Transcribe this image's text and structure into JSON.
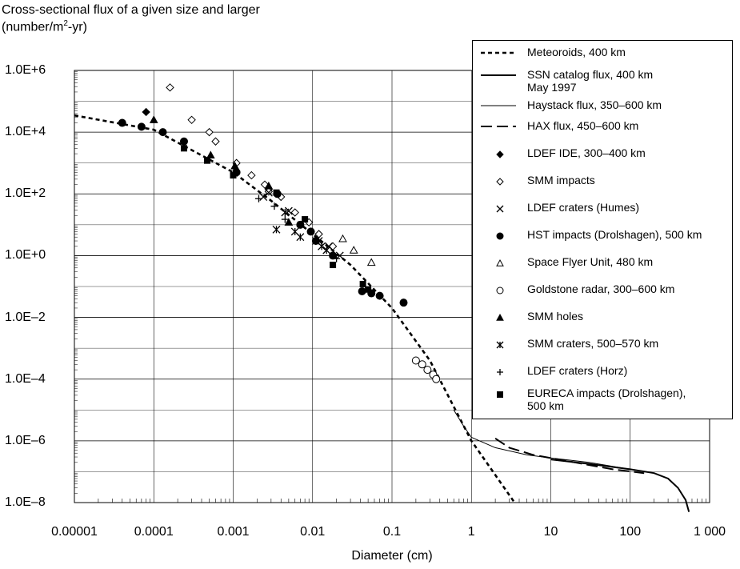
{
  "chart_data": {
    "type": "scatter",
    "ylabel_line1": "Cross-sectional flux of a given size and larger",
    "ylabel_line2_pre": "(number/m",
    "ylabel_line2_sup": "2",
    "ylabel_line2_post": "-yr)",
    "xlabel": "Diameter  (cm)",
    "xscale": "log",
    "yscale": "log",
    "xlim": [
      1e-05,
      1000
    ],
    "ylim": [
      1e-08,
      1000000.0
    ],
    "grid": true,
    "legend_position": "top-right",
    "x_tick_labels": [
      "0.00001",
      "0.0001",
      "0.001",
      "0.01",
      "0.1",
      "1",
      "10",
      "100",
      "1 000"
    ],
    "x_tick_values": [
      1e-05,
      0.0001,
      0.001,
      0.01,
      0.1,
      1,
      10,
      100,
      1000
    ],
    "y_tick_labels": [
      "1.0E+6",
      "1.0E+4",
      "1.0E+2",
      "1.0E+0",
      "1.0E–2",
      "1.0E–4",
      "1.0E–6",
      "1.0E–8"
    ],
    "y_tick_values": [
      1000000.0,
      10000.0,
      100.0,
      1,
      0.01,
      0.0001,
      1e-06,
      1e-08
    ],
    "series": [
      {
        "name": "Meteoroids, 400 km",
        "kind": "line",
        "style": "dotted",
        "points": [
          [
            1e-05,
            35000
          ],
          [
            0.0001,
            12000
          ],
          [
            0.001,
            500
          ],
          [
            0.003,
            60
          ],
          [
            0.01,
            5
          ],
          [
            0.03,
            0.5
          ],
          [
            0.1,
            0.02
          ],
          [
            0.3,
            0.0004
          ],
          [
            1,
            1e-06
          ],
          [
            3.5,
            1e-08
          ]
        ]
      },
      {
        "name": "SSN catalog flux, 400 km\nMay 1997",
        "kind": "line",
        "style": "solid-thick",
        "points": [
          [
            10,
            2.5e-07
          ],
          [
            30,
            1.8e-07
          ],
          [
            100,
            1.2e-07
          ],
          [
            200,
            9e-08
          ],
          [
            300,
            6e-08
          ],
          [
            400,
            3e-08
          ],
          [
            500,
            1.2e-08
          ],
          [
            550,
            5e-09
          ]
        ]
      },
      {
        "name": "Haystack flux, 350–600 km",
        "kind": "line",
        "style": "solid-thin",
        "points": [
          [
            0.6,
            1e-05
          ],
          [
            0.8,
            3e-06
          ],
          [
            1,
            1.3e-06
          ],
          [
            2,
            6e-07
          ],
          [
            5,
            3.5e-07
          ],
          [
            10,
            2.8e-07
          ],
          [
            30,
            2e-07
          ],
          [
            100,
            1.2e-07
          ]
        ]
      },
      {
        "name": "HAX flux, 450–600 km",
        "kind": "line",
        "style": "dashed",
        "points": [
          [
            2,
            1.2e-06
          ],
          [
            3,
            6e-07
          ],
          [
            6,
            3.5e-07
          ],
          [
            20,
            2e-07
          ],
          [
            60,
            1.2e-07
          ],
          [
            150,
            9e-08
          ]
        ]
      },
      {
        "name": "LDEF IDE, 300–400 km",
        "kind": "marker",
        "marker": "diamond-filled",
        "points": [
          [
            8e-05,
            45000
          ]
        ]
      },
      {
        "name": "SMM impacts",
        "kind": "marker",
        "marker": "diamond-open",
        "points": [
          [
            0.00016,
            280000
          ],
          [
            0.0003,
            25000
          ],
          [
            0.0005,
            10000
          ],
          [
            0.0006,
            5000
          ],
          [
            0.0011,
            1000
          ],
          [
            0.0017,
            400
          ],
          [
            0.0025,
            200
          ],
          [
            0.0028,
            120
          ],
          [
            0.004,
            80
          ],
          [
            0.006,
            25
          ],
          [
            0.009,
            12
          ],
          [
            0.012,
            5
          ],
          [
            0.018,
            2
          ]
        ]
      },
      {
        "name": "LDEF craters (Humes)",
        "kind": "marker",
        "marker": "x",
        "points": [
          [
            0.0024,
            80
          ],
          [
            0.0028,
            110
          ],
          [
            0.005,
            28
          ],
          [
            0.012,
            3
          ],
          [
            0.016,
            2
          ],
          [
            0.022,
            1
          ]
        ]
      },
      {
        "name": "HST impacts (Drolshagen), 500 km",
        "kind": "marker",
        "marker": "circle-filled",
        "points": [
          [
            4e-05,
            20000
          ],
          [
            7e-05,
            15000
          ],
          [
            0.00013,
            10000
          ],
          [
            0.00024,
            5000
          ],
          [
            0.0011,
            500
          ],
          [
            0.0036,
            100
          ],
          [
            0.007,
            10
          ],
          [
            0.0095,
            6
          ],
          [
            0.011,
            3
          ],
          [
            0.018,
            1
          ],
          [
            0.042,
            0.07
          ],
          [
            0.055,
            0.06
          ],
          [
            0.07,
            0.05
          ],
          [
            0.14,
            0.03
          ]
        ]
      },
      {
        "name": "Space Flyer Unit, 480 km",
        "kind": "marker",
        "marker": "triangle-open",
        "points": [
          [
            0.024,
            3.5
          ],
          [
            0.033,
            1.5
          ],
          [
            0.055,
            0.6
          ]
        ]
      },
      {
        "name": "Goldstone radar, 300–600 km",
        "kind": "marker",
        "marker": "circle-open",
        "points": [
          [
            0.2,
            0.0004
          ],
          [
            0.24,
            0.0003
          ],
          [
            0.28,
            0.0002
          ],
          [
            0.33,
            0.00014
          ],
          [
            0.36,
            0.0001
          ]
        ]
      },
      {
        "name": "SMM holes",
        "kind": "marker",
        "marker": "triangle-filled",
        "points": [
          [
            0.0001,
            25000
          ],
          [
            0.00052,
            1800
          ],
          [
            0.00105,
            800
          ],
          [
            0.0028,
            180
          ],
          [
            0.005,
            12
          ]
        ]
      },
      {
        "name": "SMM craters, 500–570 km",
        "kind": "marker",
        "marker": "asterisk",
        "points": [
          [
            0.0035,
            7
          ],
          [
            0.0045,
            25
          ],
          [
            0.006,
            6
          ],
          [
            0.007,
            4
          ],
          [
            0.011,
            3
          ],
          [
            0.013,
            2
          ],
          [
            0.015,
            1.5
          ]
        ]
      },
      {
        "name": "LDEF craters (Horz)",
        "kind": "marker",
        "marker": "plus",
        "points": [
          [
            0.0021,
            70
          ],
          [
            0.0033,
            40
          ],
          [
            0.0045,
            15
          ],
          [
            0.02,
            0.8
          ]
        ]
      },
      {
        "name": "EURECA impacts (Drolshagen),\n500 km",
        "kind": "marker",
        "marker": "square-filled",
        "points": [
          [
            0.00024,
            3000
          ],
          [
            0.00047,
            1200
          ],
          [
            0.001,
            400
          ],
          [
            0.0035,
            110
          ],
          [
            0.008,
            15
          ],
          [
            0.018,
            0.5
          ],
          [
            0.043,
            0.12
          ],
          [
            0.05,
            0.08
          ]
        ]
      }
    ]
  }
}
